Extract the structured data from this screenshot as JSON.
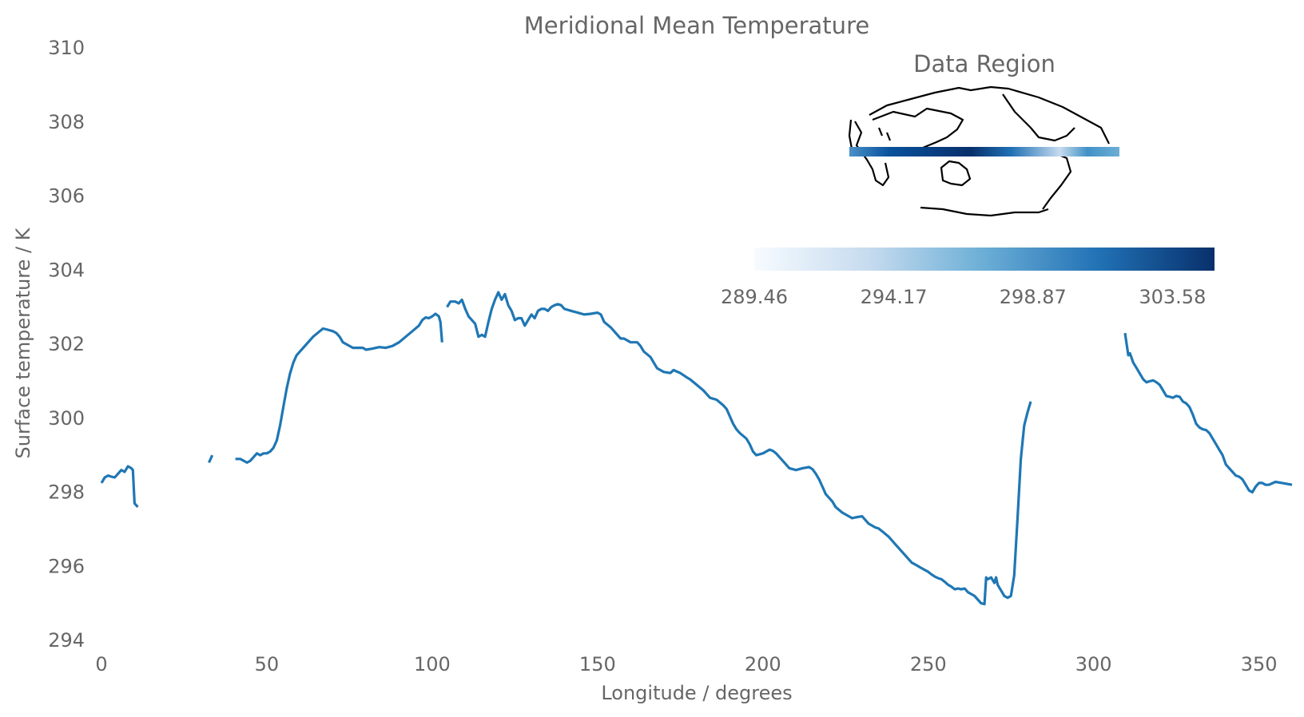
{
  "chart_data": {
    "type": "line",
    "title": "Meridional Mean Temperature",
    "xlabel": "Longitude / degrees",
    "ylabel": "Surface temperature / K",
    "xlim": [
      0,
      360
    ],
    "ylim": [
      294,
      310
    ],
    "xticks": [
      "0",
      "50",
      "100",
      "150",
      "200",
      "250",
      "300",
      "350"
    ],
    "yticks": [
      "294",
      "296",
      "298",
      "300",
      "302",
      "304",
      "306",
      "308",
      "310"
    ],
    "grid": false,
    "series_color": "#1f77b4",
    "series": [
      {
        "segments": [
          [
            [
              0,
              298.25
            ],
            [
              1,
              298.4
            ],
            [
              2,
              298.45
            ],
            [
              3,
              298.42
            ],
            [
              4,
              298.4
            ],
            [
              5,
              298.5
            ],
            [
              6,
              298.6
            ],
            [
              7,
              298.55
            ],
            [
              8,
              298.7
            ],
            [
              9,
              298.65
            ],
            [
              9.5,
              298.6
            ],
            [
              10,
              297.7
            ],
            [
              11,
              297.6
            ]
          ],
          [
            [
              32.5,
              298.8
            ],
            [
              33.5,
              299.0
            ]
          ],
          [
            [
              40.5,
              298.9
            ],
            [
              42,
              298.9
            ],
            [
              43,
              298.85
            ],
            [
              44,
              298.8
            ],
            [
              45,
              298.85
            ],
            [
              46,
              298.95
            ],
            [
              47,
              299.05
            ],
            [
              48,
              299.0
            ],
            [
              49,
              299.05
            ],
            [
              50,
              299.05
            ],
            [
              51,
              299.1
            ],
            [
              52,
              299.2
            ],
            [
              53,
              299.4
            ],
            [
              54,
              299.8
            ],
            [
              55,
              300.3
            ],
            [
              56,
              300.8
            ],
            [
              57,
              301.2
            ],
            [
              58,
              301.5
            ],
            [
              59,
              301.7
            ],
            [
              60,
              301.8
            ],
            [
              62,
              302.0
            ],
            [
              64,
              302.2
            ],
            [
              66,
              302.35
            ],
            [
              67,
              302.42
            ],
            [
              68,
              302.4
            ],
            [
              70,
              302.35
            ],
            [
              71,
              302.3
            ],
            [
              72,
              302.2
            ],
            [
              73,
              302.05
            ],
            [
              74,
              302.0
            ],
            [
              76,
              301.9
            ],
            [
              78,
              301.9
            ],
            [
              79,
              301.9
            ],
            [
              80,
              301.85
            ],
            [
              82,
              301.88
            ],
            [
              84,
              301.92
            ],
            [
              86,
              301.9
            ],
            [
              88,
              301.95
            ],
            [
              90,
              302.05
            ],
            [
              92,
              302.2
            ],
            [
              94,
              302.35
            ],
            [
              96,
              302.5
            ],
            [
              97,
              302.65
            ],
            [
              98,
              302.72
            ],
            [
              99,
              302.7
            ],
            [
              100,
              302.75
            ],
            [
              101,
              302.82
            ],
            [
              102,
              302.75
            ],
            [
              102.5,
              302.6
            ],
            [
              103,
              302.05
            ]
          ],
          [
            [
              104.5,
              303.0
            ],
            [
              105.5,
              303.15
            ],
            [
              107,
              303.15
            ],
            [
              108,
              303.1
            ],
            [
              109,
              303.2
            ],
            [
              110,
              302.95
            ],
            [
              111,
              302.75
            ],
            [
              112,
              302.65
            ],
            [
              113,
              302.55
            ],
            [
              114,
              302.2
            ],
            [
              115,
              302.25
            ],
            [
              116,
              302.2
            ],
            [
              117,
              302.6
            ],
            [
              118,
              302.95
            ],
            [
              119,
              303.2
            ],
            [
              120,
              303.4
            ],
            [
              121,
              303.2
            ],
            [
              122,
              303.35
            ],
            [
              123,
              303.05
            ],
            [
              124,
              302.9
            ],
            [
              125,
              302.65
            ],
            [
              126,
              302.7
            ],
            [
              127,
              302.7
            ],
            [
              128,
              302.5
            ],
            [
              129,
              302.65
            ],
            [
              130,
              302.8
            ],
            [
              131,
              302.7
            ],
            [
              132,
              302.9
            ],
            [
              133,
              302.95
            ],
            [
              134,
              302.95
            ],
            [
              135,
              302.9
            ],
            [
              136,
              303.0
            ],
            [
              137,
              303.05
            ],
            [
              138,
              303.08
            ],
            [
              139,
              303.05
            ],
            [
              140,
              302.95
            ],
            [
              142,
              302.9
            ],
            [
              144,
              302.85
            ],
            [
              146,
              302.8
            ],
            [
              148,
              302.82
            ],
            [
              150,
              302.85
            ],
            [
              151,
              302.8
            ],
            [
              152,
              302.6
            ],
            [
              154,
              302.45
            ],
            [
              156,
              302.25
            ],
            [
              157,
              302.15
            ],
            [
              158,
              302.15
            ],
            [
              160,
              302.05
            ],
            [
              162,
              302.05
            ],
            [
              163,
              301.95
            ],
            [
              164,
              301.8
            ],
            [
              166,
              301.65
            ],
            [
              167,
              301.5
            ],
            [
              168,
              301.35
            ],
            [
              170,
              301.25
            ],
            [
              172,
              301.22
            ],
            [
              173,
              301.3
            ],
            [
              175,
              301.22
            ],
            [
              177,
              301.1
            ],
            [
              178,
              301.05
            ],
            [
              180,
              300.9
            ],
            [
              182,
              300.75
            ],
            [
              184,
              300.55
            ],
            [
              186,
              300.5
            ],
            [
              188,
              300.35
            ],
            [
              189,
              300.25
            ],
            [
              190,
              300.05
            ],
            [
              191,
              299.85
            ],
            [
              192,
              299.7
            ],
            [
              193,
              299.6
            ],
            [
              195,
              299.45
            ],
            [
              196,
              299.3
            ],
            [
              197,
              299.1
            ],
            [
              198,
              299.0
            ],
            [
              200,
              299.05
            ],
            [
              202,
              299.15
            ],
            [
              203,
              299.12
            ],
            [
              204,
              299.05
            ],
            [
              206,
              298.85
            ],
            [
              207,
              298.75
            ],
            [
              208,
              298.65
            ],
            [
              210,
              298.6
            ],
            [
              212,
              298.65
            ],
            [
              214,
              298.68
            ],
            [
              215,
              298.62
            ],
            [
              216,
              298.5
            ],
            [
              217,
              298.35
            ],
            [
              218,
              298.15
            ],
            [
              219,
              297.95
            ],
            [
              221,
              297.75
            ],
            [
              222,
              297.6
            ],
            [
              224,
              297.45
            ],
            [
              226,
              297.35
            ],
            [
              227,
              297.3
            ],
            [
              228,
              297.32
            ],
            [
              230,
              297.35
            ],
            [
              231,
              297.25
            ],
            [
              232,
              297.15
            ],
            [
              234,
              297.05
            ],
            [
              235,
              297.02
            ],
            [
              236,
              296.95
            ],
            [
              238,
              296.8
            ],
            [
              240,
              296.6
            ],
            [
              242,
              296.4
            ],
            [
              244,
              296.2
            ],
            [
              245,
              296.1
            ],
            [
              246,
              296.05
            ],
            [
              247,
              296.0
            ],
            [
              248,
              295.95
            ],
            [
              250,
              295.85
            ],
            [
              251,
              295.78
            ],
            [
              252,
              295.72
            ],
            [
              253,
              295.68
            ],
            [
              254,
              295.65
            ],
            [
              255,
              295.58
            ],
            [
              256,
              295.5
            ],
            [
              257,
              295.45
            ],
            [
              258,
              295.38
            ],
            [
              259,
              295.4
            ],
            [
              260,
              295.38
            ],
            [
              261,
              295.4
            ],
            [
              262,
              295.3
            ],
            [
              263,
              295.25
            ],
            [
              264,
              295.2
            ],
            [
              265,
              295.1
            ],
            [
              266,
              295.0
            ],
            [
              267,
              294.98
            ],
            [
              267.5,
              295.7
            ],
            [
              268,
              295.65
            ],
            [
              269,
              295.7
            ],
            [
              270,
              295.55
            ],
            [
              270.5,
              295.7
            ],
            [
              271,
              295.5
            ],
            [
              272,
              295.35
            ],
            [
              273,
              295.2
            ],
            [
              274,
              295.15
            ],
            [
              275,
              295.2
            ],
            [
              276,
              295.75
            ],
            [
              277,
              297.3
            ],
            [
              278,
              298.9
            ],
            [
              279,
              299.8
            ],
            [
              280,
              300.15
            ],
            [
              281,
              300.45
            ]
          ],
          [
            [
              309.5,
              302.3
            ],
            [
              310.5,
              301.7
            ],
            [
              311,
              301.75
            ],
            [
              312,
              301.5
            ],
            [
              313,
              301.35
            ],
            [
              314,
              301.2
            ],
            [
              315,
              301.05
            ],
            [
              316,
              300.97
            ],
            [
              317,
              301.0
            ],
            [
              318,
              301.02
            ],
            [
              319,
              300.97
            ],
            [
              320,
              300.9
            ],
            [
              321,
              300.75
            ],
            [
              322,
              300.6
            ],
            [
              323,
              300.58
            ],
            [
              324,
              300.55
            ],
            [
              325,
              300.6
            ],
            [
              326,
              300.58
            ],
            [
              327,
              300.45
            ],
            [
              328,
              300.4
            ],
            [
              329,
              300.3
            ],
            [
              330,
              300.1
            ],
            [
              331,
              299.85
            ],
            [
              332,
              299.75
            ],
            [
              333,
              299.7
            ],
            [
              334,
              299.68
            ],
            [
              335,
              299.6
            ],
            [
              336,
              299.45
            ],
            [
              337,
              299.3
            ],
            [
              338,
              299.15
            ],
            [
              339,
              299.0
            ],
            [
              340,
              298.75
            ],
            [
              341,
              298.65
            ],
            [
              342,
              298.55
            ],
            [
              343,
              298.45
            ],
            [
              344,
              298.42
            ],
            [
              345,
              298.35
            ],
            [
              346,
              298.2
            ],
            [
              347,
              298.05
            ],
            [
              348,
              298.0
            ],
            [
              349,
              298.15
            ],
            [
              350,
              298.25
            ],
            [
              351,
              298.25
            ],
            [
              352,
              298.2
            ],
            [
              353,
              298.2
            ],
            [
              355,
              298.28
            ],
            [
              357,
              298.25
            ],
            [
              360,
              298.2
            ]
          ]
        ]
      }
    ],
    "inset": {
      "title": "Data Region",
      "colormap": "Blues",
      "colorbar_ticks": [
        "289.46",
        "294.17",
        "298.87",
        "303.58"
      ],
      "colorbar_range": [
        289.46,
        305.0
      ]
    }
  }
}
